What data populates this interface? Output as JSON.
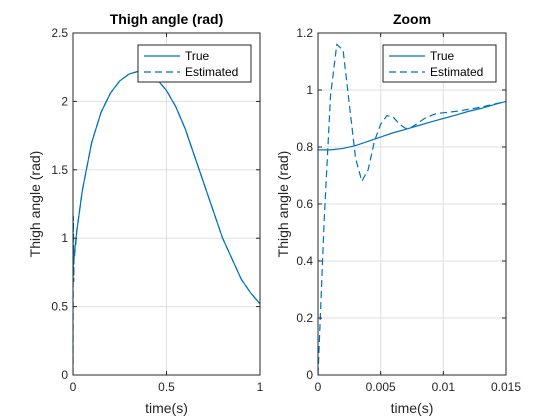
{
  "chart_data": [
    {
      "type": "line",
      "title": "Thigh angle (rad)",
      "xlabel": "time(s)",
      "ylabel": "Thigh angle (rad)",
      "xlim": [
        0,
        1
      ],
      "ylim": [
        0,
        2.5
      ],
      "xticks": [
        "0",
        "0.5",
        "1"
      ],
      "yticks": [
        "0",
        "0.5",
        "1",
        "1.5",
        "2",
        "2.5"
      ],
      "grid": true,
      "legend": "top-right",
      "series": [
        {
          "name": "True",
          "style": "solid",
          "x": [
            0,
            0.02,
            0.05,
            0.1,
            0.15,
            0.2,
            0.25,
            0.3,
            0.35,
            0.4,
            0.45,
            0.5,
            0.55,
            0.6,
            0.65,
            0.7,
            0.75,
            0.8,
            0.85,
            0.9,
            0.95,
            1.0
          ],
          "y": [
            0.79,
            1.05,
            1.35,
            1.7,
            1.92,
            2.06,
            2.15,
            2.2,
            2.22,
            2.21,
            2.16,
            2.08,
            1.96,
            1.8,
            1.6,
            1.4,
            1.2,
            1.0,
            0.85,
            0.7,
            0.6,
            0.52
          ]
        },
        {
          "name": "Estimated",
          "style": "dashed",
          "x": [
            0,
            0.001,
            0.002,
            0.003,
            0.004,
            0.005,
            0.006,
            0.008,
            0.01,
            0.015,
            0.02,
            0.05,
            0.1,
            0.15,
            0.2,
            0.25,
            0.3,
            0.35,
            0.4,
            0.45,
            0.5,
            0.55,
            0.6,
            0.65,
            0.7,
            0.75,
            0.8,
            0.85,
            0.9,
            0.95,
            1.0
          ],
          "y": [
            0.0,
            0.9,
            1.16,
            0.95,
            0.68,
            0.82,
            0.91,
            0.86,
            0.9,
            0.96,
            1.05,
            1.35,
            1.7,
            1.92,
            2.06,
            2.15,
            2.2,
            2.22,
            2.21,
            2.16,
            2.08,
            1.96,
            1.8,
            1.6,
            1.4,
            1.2,
            1.0,
            0.85,
            0.7,
            0.6,
            0.52
          ]
        }
      ]
    },
    {
      "type": "line",
      "title": "Zoom",
      "xlabel": "time(s)",
      "ylabel": "Thigh angle (rad)",
      "xlim": [
        0,
        0.015
      ],
      "ylim": [
        0,
        1.2
      ],
      "xticks": [
        "0",
        "0.005",
        "0.01",
        "0.015"
      ],
      "yticks": [
        "0",
        "0.2",
        "0.4",
        "0.6",
        "0.8",
        "1",
        "1.2"
      ],
      "grid": true,
      "legend": "top-right",
      "series": [
        {
          "name": "True",
          "style": "solid",
          "x": [
            0,
            0.001,
            0.002,
            0.003,
            0.004,
            0.005,
            0.006,
            0.007,
            0.008,
            0.009,
            0.01,
            0.011,
            0.012,
            0.013,
            0.014,
            0.015
          ],
          "y": [
            0.79,
            0.79,
            0.795,
            0.805,
            0.82,
            0.835,
            0.85,
            0.862,
            0.875,
            0.888,
            0.9,
            0.912,
            0.925,
            0.935,
            0.948,
            0.96
          ]
        },
        {
          "name": "Estimated",
          "style": "dashed",
          "x": [
            0,
            0.0005,
            0.001,
            0.0015,
            0.002,
            0.0025,
            0.003,
            0.0035,
            0.004,
            0.0045,
            0.005,
            0.0055,
            0.006,
            0.0065,
            0.007,
            0.0075,
            0.008,
            0.0085,
            0.009,
            0.0095,
            0.01,
            0.011,
            0.012,
            0.013,
            0.014,
            0.015
          ],
          "y": [
            0.0,
            0.55,
            0.98,
            1.16,
            1.14,
            0.95,
            0.76,
            0.68,
            0.72,
            0.82,
            0.88,
            0.91,
            0.905,
            0.88,
            0.865,
            0.87,
            0.885,
            0.9,
            0.91,
            0.918,
            0.92,
            0.925,
            0.932,
            0.94,
            0.95,
            0.96
          ]
        }
      ]
    }
  ]
}
